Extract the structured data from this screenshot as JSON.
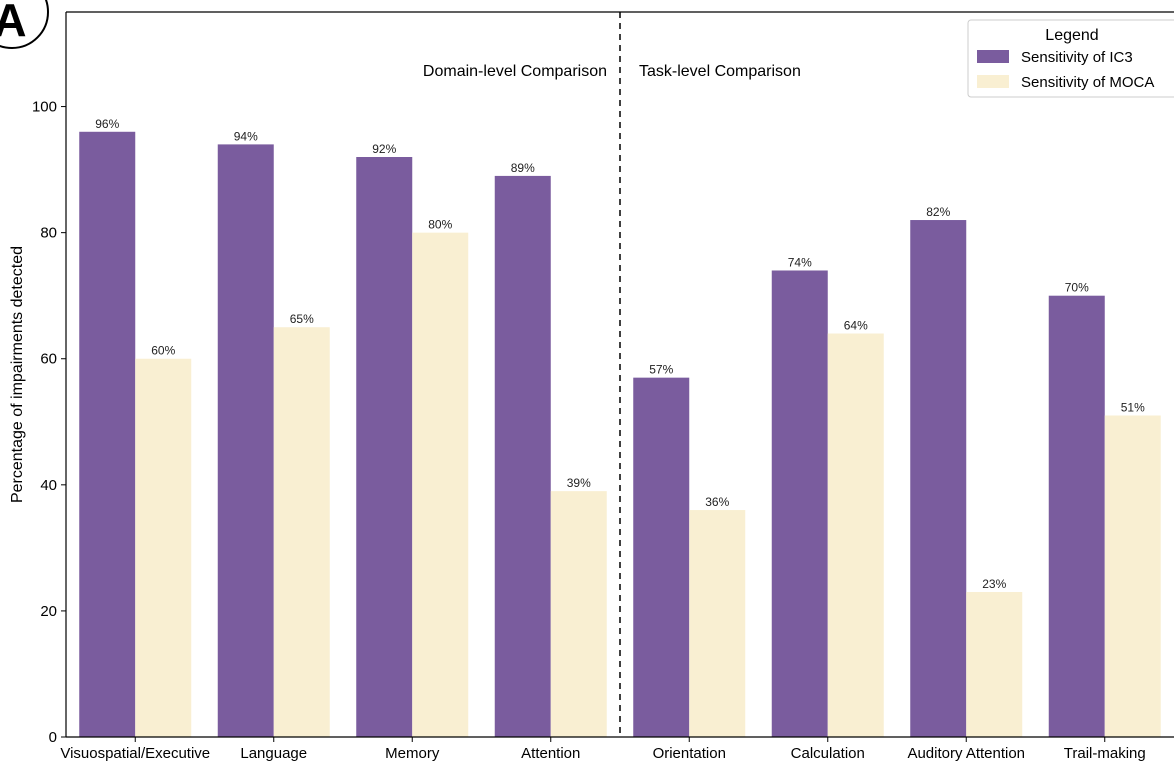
{
  "panel_label": "A",
  "colors": {
    "ic3": "#7a5c9e",
    "moca": "#f9efd2"
  },
  "sections": {
    "left": "Domain-level Comparison",
    "right": "Task-level Comparison"
  },
  "chart_data": {
    "type": "bar",
    "categories": [
      "Visuospatial/Executive",
      "Language",
      "Memory",
      "Attention",
      "Orientation",
      "Calculation",
      "Auditory Attention",
      "Trail-making"
    ],
    "series": [
      {
        "name": "Sensitivity of IC3",
        "values": [
          96,
          94,
          92,
          89,
          57,
          74,
          82,
          70
        ],
        "labels": [
          "96%",
          "94%",
          "92%",
          "89%",
          "57%",
          "74%",
          "82%",
          "70%"
        ]
      },
      {
        "name": "Sensitivity of MOCA",
        "values": [
          60,
          65,
          80,
          39,
          36,
          64,
          23,
          51
        ],
        "labels": [
          "60%",
          "65%",
          "80%",
          "39%",
          "36%",
          "64%",
          "23%",
          "51%"
        ]
      }
    ],
    "ylabel": "Percentage of impairments detected",
    "xlabel": "",
    "ylim": [
      0,
      115
    ],
    "yticks": [
      0,
      20,
      40,
      60,
      80,
      100
    ],
    "legend": {
      "title": "Legend",
      "placement": "top-right"
    },
    "grid": false
  }
}
